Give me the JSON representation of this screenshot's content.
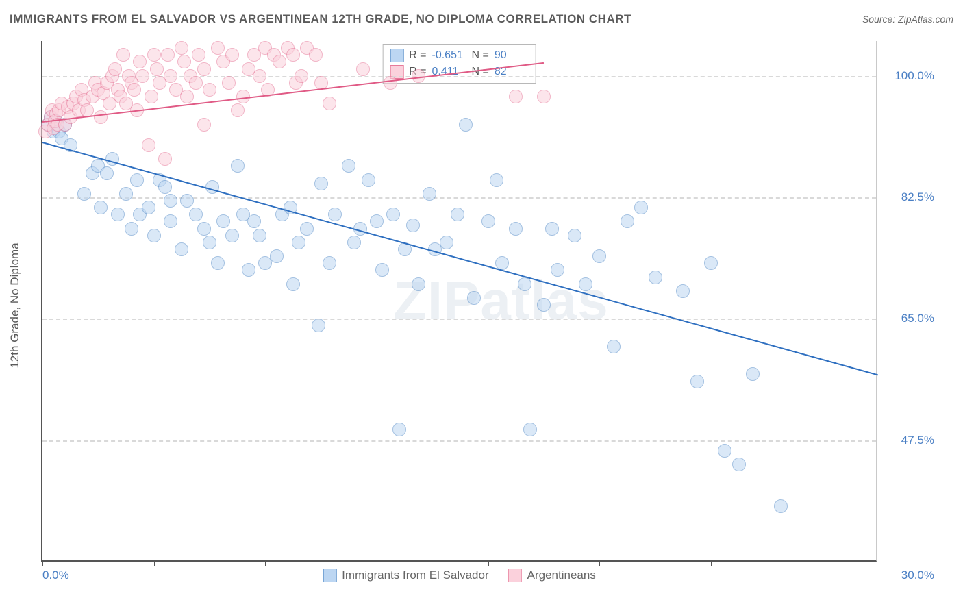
{
  "header": {
    "title": "IMMIGRANTS FROM EL SALVADOR VS ARGENTINEAN 12TH GRADE, NO DIPLOMA CORRELATION CHART",
    "source": "Source: ZipAtlas.com"
  },
  "chart": {
    "type": "scatter",
    "ylabel": "12th Grade, No Diploma",
    "watermark": "ZIPatlas",
    "xlim": [
      0,
      30
    ],
    "ylim": [
      30,
      105
    ],
    "xticks": [
      0,
      4,
      8,
      12,
      16,
      20,
      24,
      28
    ],
    "yticks": [
      47.5,
      65.0,
      82.5,
      100.0
    ],
    "ytick_labels": [
      "47.5%",
      "65.0%",
      "82.5%",
      "100.0%"
    ],
    "xmin_label": "0.0%",
    "xmax_label": "30.0%",
    "background_color": "#ffffff",
    "grid_color": "#d9d9d9",
    "marker_size": 20,
    "marker_opacity": 0.55,
    "series": [
      {
        "name": "Immigrants from El Salvador",
        "color": "#6ea5e0",
        "fill": "#bcd6f2",
        "border": "#5a8fc9",
        "R": "-0.651",
        "N": "90",
        "trend": {
          "x1": 0,
          "y1": 90.5,
          "x2": 30,
          "y2": 57,
          "color": "#2e6fc0",
          "width": 2
        },
        "points": [
          [
            0.2,
            93
          ],
          [
            0.3,
            94
          ],
          [
            0.4,
            92
          ],
          [
            0.5,
            93.5
          ],
          [
            0.6,
            92
          ],
          [
            0.7,
            91
          ],
          [
            0.8,
            93
          ],
          [
            1.0,
            90
          ],
          [
            1.5,
            83
          ],
          [
            1.8,
            86
          ],
          [
            2.0,
            87
          ],
          [
            2.1,
            81
          ],
          [
            2.3,
            86
          ],
          [
            2.5,
            88
          ],
          [
            2.7,
            80
          ],
          [
            3.0,
            83
          ],
          [
            3.2,
            78
          ],
          [
            3.4,
            85
          ],
          [
            3.5,
            80
          ],
          [
            3.8,
            81
          ],
          [
            4.0,
            77
          ],
          [
            4.2,
            85
          ],
          [
            4.4,
            84
          ],
          [
            4.6,
            82
          ],
          [
            4.6,
            79
          ],
          [
            5.0,
            75
          ],
          [
            5.2,
            82
          ],
          [
            5.5,
            80
          ],
          [
            5.8,
            78
          ],
          [
            6.0,
            76
          ],
          [
            6.1,
            84
          ],
          [
            6.3,
            73
          ],
          [
            6.5,
            79
          ],
          [
            6.8,
            77
          ],
          [
            7.0,
            87
          ],
          [
            7.2,
            80
          ],
          [
            7.4,
            72
          ],
          [
            7.6,
            79
          ],
          [
            7.8,
            77
          ],
          [
            8.0,
            73
          ],
          [
            8.4,
            74
          ],
          [
            8.6,
            80
          ],
          [
            8.9,
            81
          ],
          [
            9.0,
            70
          ],
          [
            9.2,
            76
          ],
          [
            9.5,
            78
          ],
          [
            9.9,
            64
          ],
          [
            10,
            84.5
          ],
          [
            10.3,
            73
          ],
          [
            10.5,
            80
          ],
          [
            11,
            87
          ],
          [
            11.2,
            76
          ],
          [
            11.4,
            78
          ],
          [
            11.7,
            85
          ],
          [
            12,
            79
          ],
          [
            12.2,
            72
          ],
          [
            12.6,
            80
          ],
          [
            12.8,
            49
          ],
          [
            13,
            75
          ],
          [
            13.3,
            78.5
          ],
          [
            13.5,
            70
          ],
          [
            13.9,
            83
          ],
          [
            14.1,
            75
          ],
          [
            14.5,
            76
          ],
          [
            14.9,
            80
          ],
          [
            15.2,
            93
          ],
          [
            15.5,
            68
          ],
          [
            16.0,
            79
          ],
          [
            16.3,
            85
          ],
          [
            16.5,
            73
          ],
          [
            17.0,
            78
          ],
          [
            17.3,
            70
          ],
          [
            17.5,
            49
          ],
          [
            18.0,
            67
          ],
          [
            18.3,
            78
          ],
          [
            18.5,
            72
          ],
          [
            19.1,
            77
          ],
          [
            19.5,
            70
          ],
          [
            20.0,
            74
          ],
          [
            20.5,
            61
          ],
          [
            21.0,
            79
          ],
          [
            21.5,
            81
          ],
          [
            22,
            71
          ],
          [
            23,
            69
          ],
          [
            23.5,
            56
          ],
          [
            24,
            73
          ],
          [
            24.5,
            46
          ],
          [
            25,
            44
          ],
          [
            25.5,
            57
          ],
          [
            26.5,
            38
          ]
        ]
      },
      {
        "name": "Argentineans",
        "color": "#f29bb5",
        "fill": "#fbd1dc",
        "border": "#e77a9a",
        "R": "0.411",
        "N": "82",
        "trend": {
          "x1": 0,
          "y1": 93.5,
          "x2": 18,
          "y2": 102,
          "color": "#e05a85",
          "width": 2
        },
        "points": [
          [
            0.1,
            92
          ],
          [
            0.2,
            93
          ],
          [
            0.3,
            94
          ],
          [
            0.35,
            95
          ],
          [
            0.4,
            92.5
          ],
          [
            0.45,
            93.5
          ],
          [
            0.5,
            94.5
          ],
          [
            0.55,
            93
          ],
          [
            0.6,
            95
          ],
          [
            0.7,
            96
          ],
          [
            0.8,
            93
          ],
          [
            0.9,
            95.5
          ],
          [
            1.0,
            94
          ],
          [
            1.1,
            96
          ],
          [
            1.2,
            97
          ],
          [
            1.3,
            95
          ],
          [
            1.4,
            98
          ],
          [
            1.5,
            96.5
          ],
          [
            1.6,
            95
          ],
          [
            1.8,
            97
          ],
          [
            1.9,
            99
          ],
          [
            2.0,
            98
          ],
          [
            2.1,
            94
          ],
          [
            2.2,
            97.5
          ],
          [
            2.3,
            99
          ],
          [
            2.4,
            96
          ],
          [
            2.5,
            100
          ],
          [
            2.6,
            101
          ],
          [
            2.7,
            98
          ],
          [
            2.8,
            97
          ],
          [
            2.9,
            103
          ],
          [
            3.0,
            96
          ],
          [
            3.1,
            100
          ],
          [
            3.2,
            99
          ],
          [
            3.3,
            98
          ],
          [
            3.4,
            95
          ],
          [
            3.5,
            102
          ],
          [
            3.6,
            100
          ],
          [
            3.8,
            90
          ],
          [
            3.9,
            97
          ],
          [
            4.0,
            103
          ],
          [
            4.1,
            101
          ],
          [
            4.2,
            99
          ],
          [
            4.4,
            88
          ],
          [
            4.5,
            103
          ],
          [
            4.6,
            100
          ],
          [
            4.8,
            98
          ],
          [
            5.0,
            104
          ],
          [
            5.1,
            102
          ],
          [
            5.2,
            97
          ],
          [
            5.3,
            100
          ],
          [
            5.5,
            99
          ],
          [
            5.6,
            103
          ],
          [
            5.8,
            101
          ],
          [
            5.8,
            93
          ],
          [
            6.0,
            98
          ],
          [
            6.3,
            104
          ],
          [
            6.5,
            102
          ],
          [
            6.7,
            99
          ],
          [
            6.8,
            103
          ],
          [
            7.0,
            95
          ],
          [
            7.2,
            97
          ],
          [
            7.4,
            101
          ],
          [
            7.6,
            103
          ],
          [
            7.8,
            100
          ],
          [
            8.0,
            104
          ],
          [
            8.1,
            98
          ],
          [
            8.3,
            103
          ],
          [
            8.5,
            102
          ],
          [
            8.8,
            104
          ],
          [
            9.0,
            103
          ],
          [
            9.1,
            99
          ],
          [
            9.3,
            100
          ],
          [
            9.5,
            104
          ],
          [
            9.8,
            103
          ],
          [
            10.0,
            99
          ],
          [
            10.3,
            96
          ],
          [
            11.5,
            101
          ],
          [
            12.5,
            99
          ],
          [
            13.5,
            100
          ],
          [
            17,
            97
          ],
          [
            18,
            97
          ]
        ]
      }
    ],
    "stats_box": {
      "labels": {
        "R": "R =",
        "N": "N ="
      }
    },
    "bottom_legend": [
      {
        "label": "Immigrants from El Salvador",
        "fill": "#bcd6f2",
        "border": "#5a8fc9"
      },
      {
        "label": "Argentineans",
        "fill": "#fbd1dc",
        "border": "#e77a9a"
      }
    ]
  }
}
